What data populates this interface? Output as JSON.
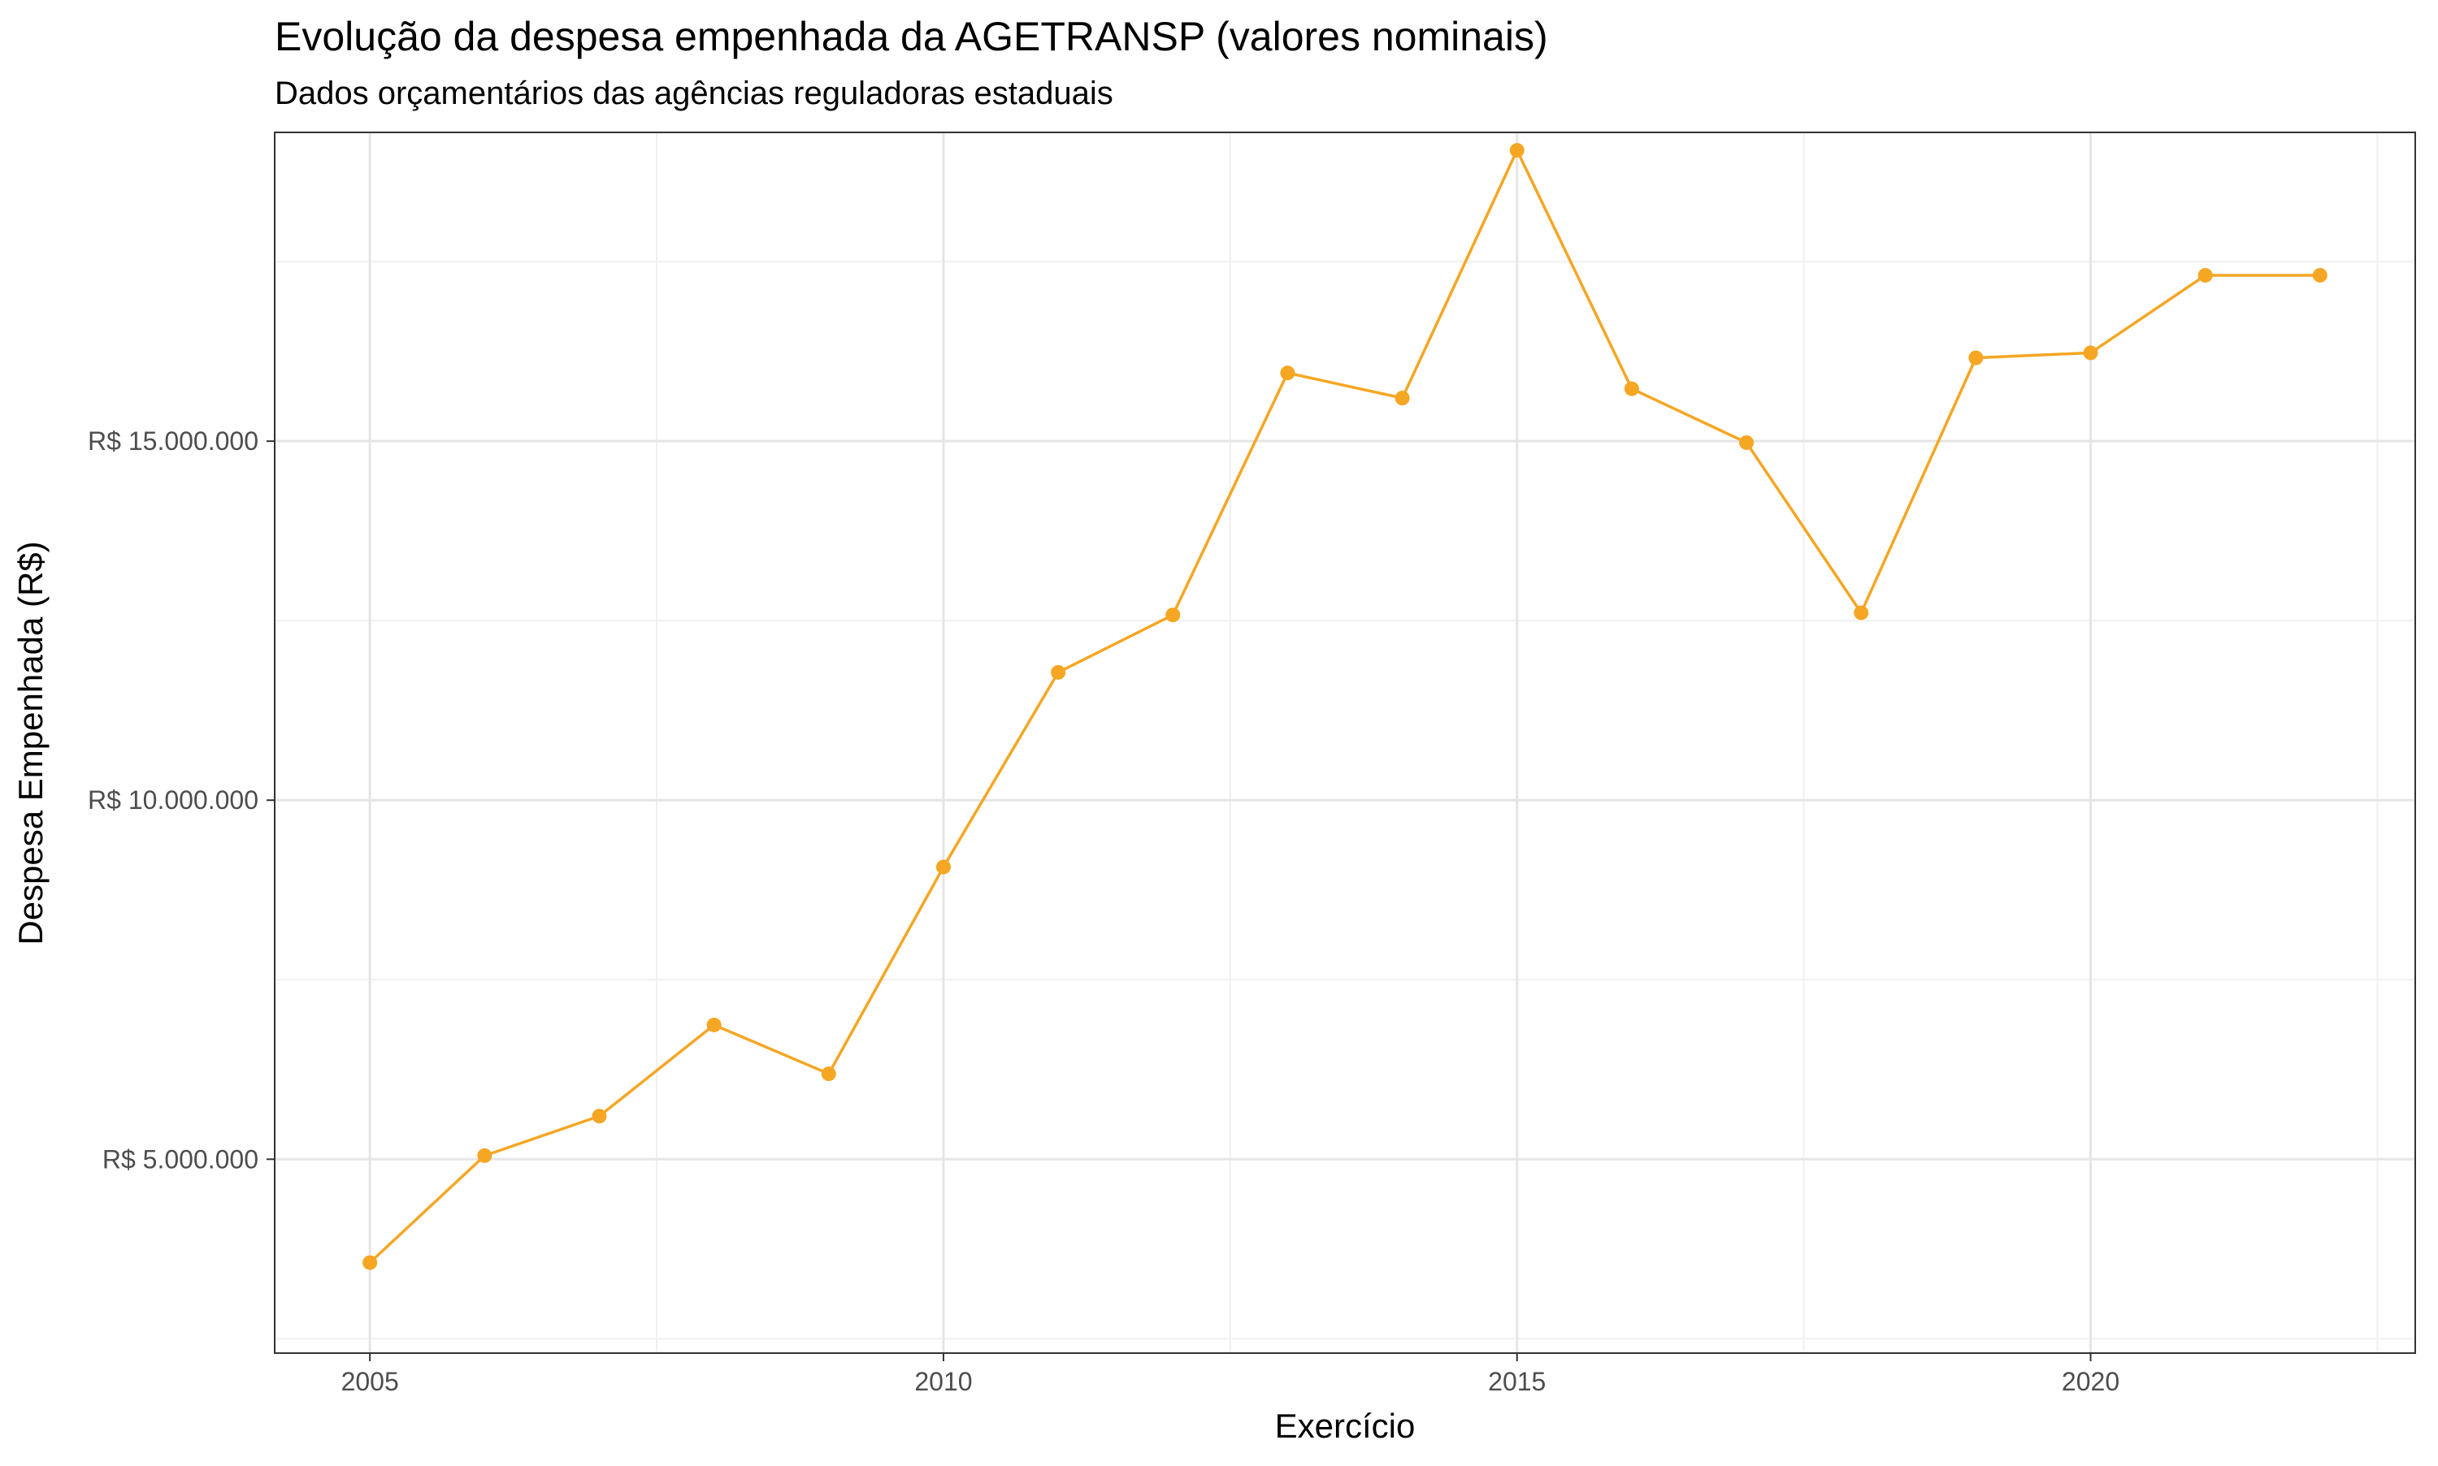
{
  "chart_data": {
    "type": "line",
    "title": "Evolução da despesa empenhada da AGETRANSP (valores nominais)",
    "subtitle": "Dados orçamentários das agências reguladoras estaduais",
    "xlabel": "Exercício",
    "ylabel": "Despesa Empenhada (R$)",
    "x_ticks": [
      2005,
      2010,
      2015,
      2020
    ],
    "x_tick_labels": [
      "2005",
      "2010",
      "2015",
      "2020"
    ],
    "y_ticks": [
      5000000,
      10000000,
      15000000
    ],
    "y_tick_labels": [
      "R$ 5.000.000",
      "R$ 10.000.000",
      "R$ 15.000.000"
    ],
    "xlim": [
      2004.17,
      2022.83
    ],
    "ylim": [
      2300000,
      19300000
    ],
    "grid": true,
    "color": "#F5A623",
    "series": [
      {
        "x": [
          2005,
          2006,
          2007,
          2008,
          2009,
          2010,
          2011,
          2012,
          2013,
          2014,
          2015,
          2016,
          2017,
          2018,
          2019,
          2020,
          2021,
          2022
        ],
        "values": [
          3560000,
          5050000,
          5600000,
          6870000,
          6190000,
          9070000,
          11780000,
          12580000,
          15950000,
          15600000,
          19050000,
          15730000,
          14980000,
          12610000,
          16160000,
          16230000,
          17310000,
          17310000
        ]
      }
    ]
  }
}
